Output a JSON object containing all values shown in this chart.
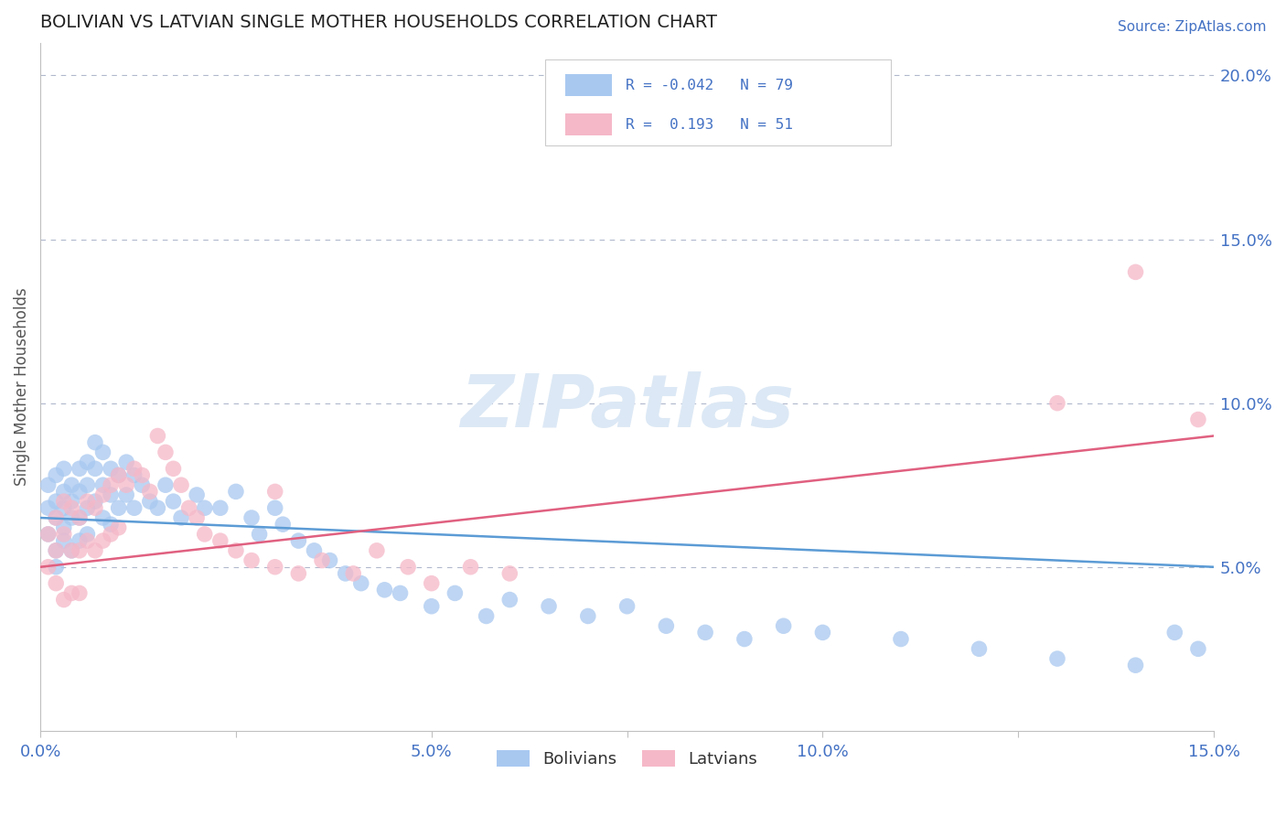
{
  "title": "BOLIVIAN VS LATVIAN SINGLE MOTHER HOUSEHOLDS CORRELATION CHART",
  "source_text": "Source: ZipAtlas.com",
  "ylabel": "Single Mother Households",
  "xlim": [
    0.0,
    0.15
  ],
  "ylim": [
    0.0,
    0.21
  ],
  "blue_color": "#a8c8f0",
  "pink_color": "#f5b8c8",
  "blue_line_color": "#5b9bd5",
  "pink_line_color": "#e06080",
  "watermark": "ZIPatlas",
  "watermark_color": "#dce8f5",
  "blue_R": -0.042,
  "blue_N": 79,
  "pink_R": 0.193,
  "pink_N": 51,
  "bolivians_x": [
    0.001,
    0.001,
    0.001,
    0.002,
    0.002,
    0.002,
    0.002,
    0.002,
    0.003,
    0.003,
    0.003,
    0.003,
    0.003,
    0.004,
    0.004,
    0.004,
    0.004,
    0.005,
    0.005,
    0.005,
    0.005,
    0.006,
    0.006,
    0.006,
    0.006,
    0.007,
    0.007,
    0.007,
    0.008,
    0.008,
    0.008,
    0.009,
    0.009,
    0.009,
    0.01,
    0.01,
    0.011,
    0.011,
    0.012,
    0.012,
    0.013,
    0.014,
    0.015,
    0.016,
    0.017,
    0.018,
    0.02,
    0.021,
    0.023,
    0.025,
    0.027,
    0.028,
    0.03,
    0.031,
    0.033,
    0.035,
    0.037,
    0.039,
    0.041,
    0.044,
    0.046,
    0.05,
    0.053,
    0.057,
    0.06,
    0.065,
    0.07,
    0.075,
    0.08,
    0.085,
    0.09,
    0.095,
    0.1,
    0.11,
    0.12,
    0.13,
    0.14,
    0.145,
    0.148
  ],
  "bolivians_y": [
    0.075,
    0.068,
    0.06,
    0.078,
    0.07,
    0.065,
    0.055,
    0.05,
    0.08,
    0.073,
    0.068,
    0.062,
    0.058,
    0.075,
    0.07,
    0.065,
    0.055,
    0.08,
    0.073,
    0.065,
    0.058,
    0.082,
    0.075,
    0.068,
    0.06,
    0.088,
    0.08,
    0.07,
    0.085,
    0.075,
    0.065,
    0.08,
    0.072,
    0.063,
    0.078,
    0.068,
    0.082,
    0.072,
    0.078,
    0.068,
    0.075,
    0.07,
    0.068,
    0.075,
    0.07,
    0.065,
    0.072,
    0.068,
    0.068,
    0.073,
    0.065,
    0.06,
    0.068,
    0.063,
    0.058,
    0.055,
    0.052,
    0.048,
    0.045,
    0.043,
    0.042,
    0.038,
    0.042,
    0.035,
    0.04,
    0.038,
    0.035,
    0.038,
    0.032,
    0.03,
    0.028,
    0.032,
    0.03,
    0.028,
    0.025,
    0.022,
    0.02,
    0.03,
    0.025
  ],
  "latvians_x": [
    0.001,
    0.001,
    0.002,
    0.002,
    0.002,
    0.003,
    0.003,
    0.003,
    0.004,
    0.004,
    0.004,
    0.005,
    0.005,
    0.005,
    0.006,
    0.006,
    0.007,
    0.007,
    0.008,
    0.008,
    0.009,
    0.009,
    0.01,
    0.01,
    0.011,
    0.012,
    0.013,
    0.014,
    0.015,
    0.016,
    0.017,
    0.018,
    0.019,
    0.02,
    0.021,
    0.023,
    0.025,
    0.027,
    0.03,
    0.033,
    0.036,
    0.04,
    0.043,
    0.047,
    0.05,
    0.055,
    0.06,
    0.13,
    0.14,
    0.148,
    0.03
  ],
  "latvians_y": [
    0.06,
    0.05,
    0.065,
    0.055,
    0.045,
    0.07,
    0.06,
    0.04,
    0.068,
    0.055,
    0.042,
    0.065,
    0.055,
    0.042,
    0.07,
    0.058,
    0.068,
    0.055,
    0.072,
    0.058,
    0.075,
    0.06,
    0.078,
    0.062,
    0.075,
    0.08,
    0.078,
    0.073,
    0.09,
    0.085,
    0.08,
    0.075,
    0.068,
    0.065,
    0.06,
    0.058,
    0.055,
    0.052,
    0.05,
    0.048,
    0.052,
    0.048,
    0.055,
    0.05,
    0.045,
    0.05,
    0.048,
    0.1,
    0.14,
    0.095,
    0.073
  ]
}
